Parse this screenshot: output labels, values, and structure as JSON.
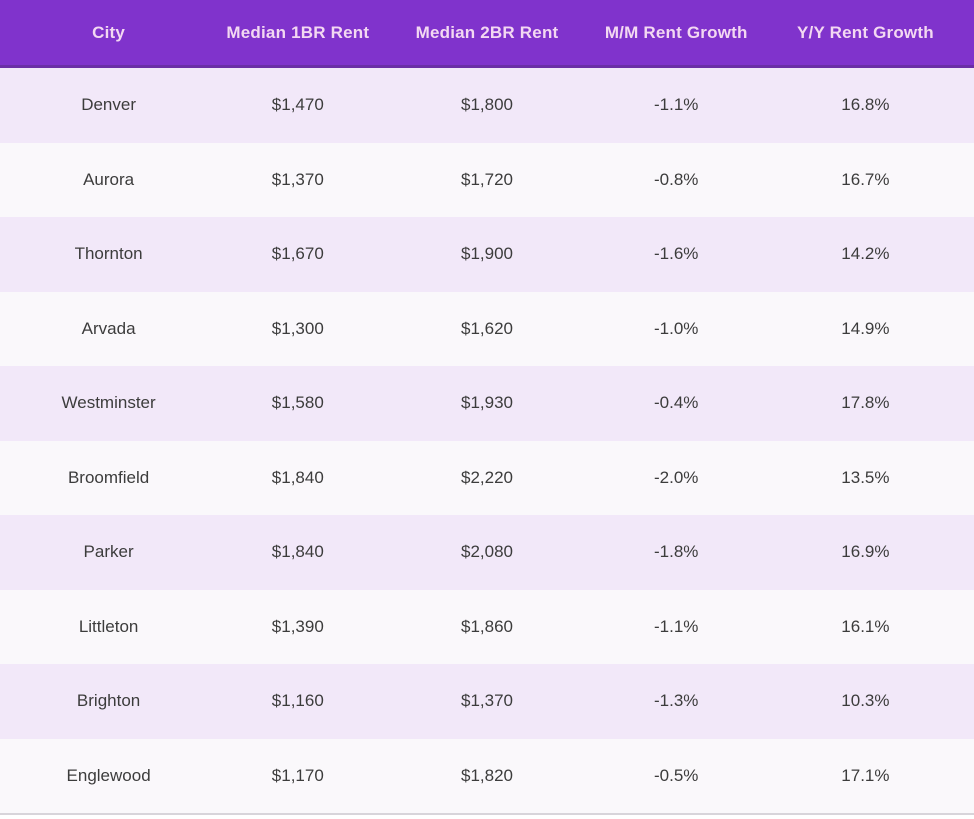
{
  "chart_data": {
    "type": "table",
    "columns": [
      "City",
      "Median 1BR Rent",
      "Median 2BR Rent",
      "M/M Rent Growth",
      "Y/Y Rent Growth"
    ],
    "rows": [
      [
        "Denver",
        "$1,470",
        "$1,800",
        "-1.1%",
        "16.8%"
      ],
      [
        "Aurora",
        "$1,370",
        "$1,720",
        "-0.8%",
        "16.7%"
      ],
      [
        "Thornton",
        "$1,670",
        "$1,900",
        "-1.6%",
        "14.2%"
      ],
      [
        "Arvada",
        "$1,300",
        "$1,620",
        "-1.0%",
        "14.9%"
      ],
      [
        "Westminster",
        "$1,580",
        "$1,930",
        "-0.4%",
        "17.8%"
      ],
      [
        "Broomfield",
        "$1,840",
        "$2,220",
        "-2.0%",
        "13.5%"
      ],
      [
        "Parker",
        "$1,840",
        "$2,080",
        "-1.8%",
        "16.9%"
      ],
      [
        "Littleton",
        "$1,390",
        "$1,860",
        "-1.1%",
        "16.1%"
      ],
      [
        "Brighton",
        "$1,160",
        "$1,370",
        "-1.3%",
        "10.3%"
      ],
      [
        "Englewood",
        "$1,170",
        "$1,820",
        "-0.5%",
        "17.1%"
      ]
    ]
  },
  "colors": {
    "header_bg": "#8033CC",
    "header_border": "#6B2EA6",
    "header_text": "#F3D8F2",
    "row_lavender": "#F2E8F9",
    "row_white": "#FAF8FB",
    "cell_text": "#3C3C3C",
    "table_bottom_border": "#D8D4DA",
    "page_bg": "#FFFFFF"
  }
}
